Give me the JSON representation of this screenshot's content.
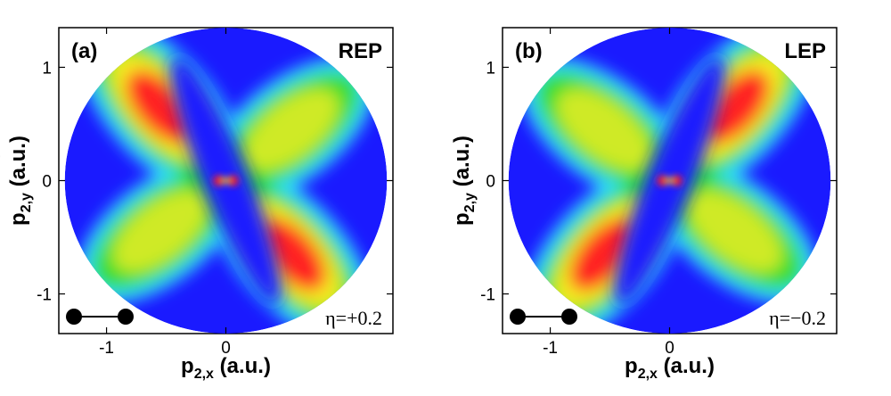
{
  "chart_data": [
    {
      "type": "heatmap",
      "panel_label": "(a)",
      "corner_label": "REP",
      "eta_label": "η=+0.2",
      "xlabel": {
        "main": "p",
        "sub": "2,x",
        "unit": " (a.u.)"
      },
      "ylabel": {
        "main": "p",
        "sub": "2,y",
        "unit": " (a.u.)"
      },
      "xlim": [
        -1.4,
        1.4
      ],
      "ylim": [
        -1.35,
        1.35
      ],
      "xticks": [
        {
          "value": -1,
          "label": "-1"
        },
        {
          "value": 0,
          "label": "0"
        }
      ],
      "yticks": [
        {
          "value": 1,
          "label": "1"
        },
        {
          "value": 0,
          "label": "0"
        },
        {
          "value": -1,
          "label": "-1"
        }
      ],
      "disk_radius": 1.35,
      "lobes": [
        {
          "x": -0.55,
          "y": 0.65,
          "peak": 1.0
        },
        {
          "x": 0.55,
          "y": -0.65,
          "peak": 1.0
        },
        {
          "x": 0.55,
          "y": 0.45,
          "peak": 0.55
        },
        {
          "x": -0.55,
          "y": -0.45,
          "peak": 0.55
        }
      ],
      "center_features": "small red/orange spots at origin"
    },
    {
      "type": "heatmap",
      "panel_label": "(b)",
      "corner_label": "LEP",
      "eta_label": "η=−0.2",
      "xlabel": {
        "main": "p",
        "sub": "2,x",
        "unit": " (a.u.)"
      },
      "ylabel": {
        "main": "p",
        "sub": "2,y",
        "unit": " (a.u.)"
      },
      "xlim": [
        -1.4,
        1.4
      ],
      "ylim": [
        -1.35,
        1.35
      ],
      "xticks": [
        {
          "value": -1,
          "label": "-1"
        },
        {
          "value": 0,
          "label": "0"
        }
      ],
      "yticks": [
        {
          "value": 1,
          "label": "1"
        },
        {
          "value": 0,
          "label": "0"
        },
        {
          "value": -1,
          "label": "-1"
        }
      ],
      "disk_radius": 1.35,
      "lobes": [
        {
          "x": 0.55,
          "y": 0.65,
          "peak": 1.0
        },
        {
          "x": -0.55,
          "y": -0.65,
          "peak": 1.0
        },
        {
          "x": -0.55,
          "y": 0.45,
          "peak": 0.55
        },
        {
          "x": 0.55,
          "y": -0.45,
          "peak": 0.55
        }
      ],
      "center_features": "small red/orange spots at origin"
    }
  ],
  "colors": {
    "background_blue": "#1a1aff",
    "cyan": "#33ddff",
    "green": "#33dd33",
    "yellow": "#ffee22",
    "red": "#ff2020"
  }
}
